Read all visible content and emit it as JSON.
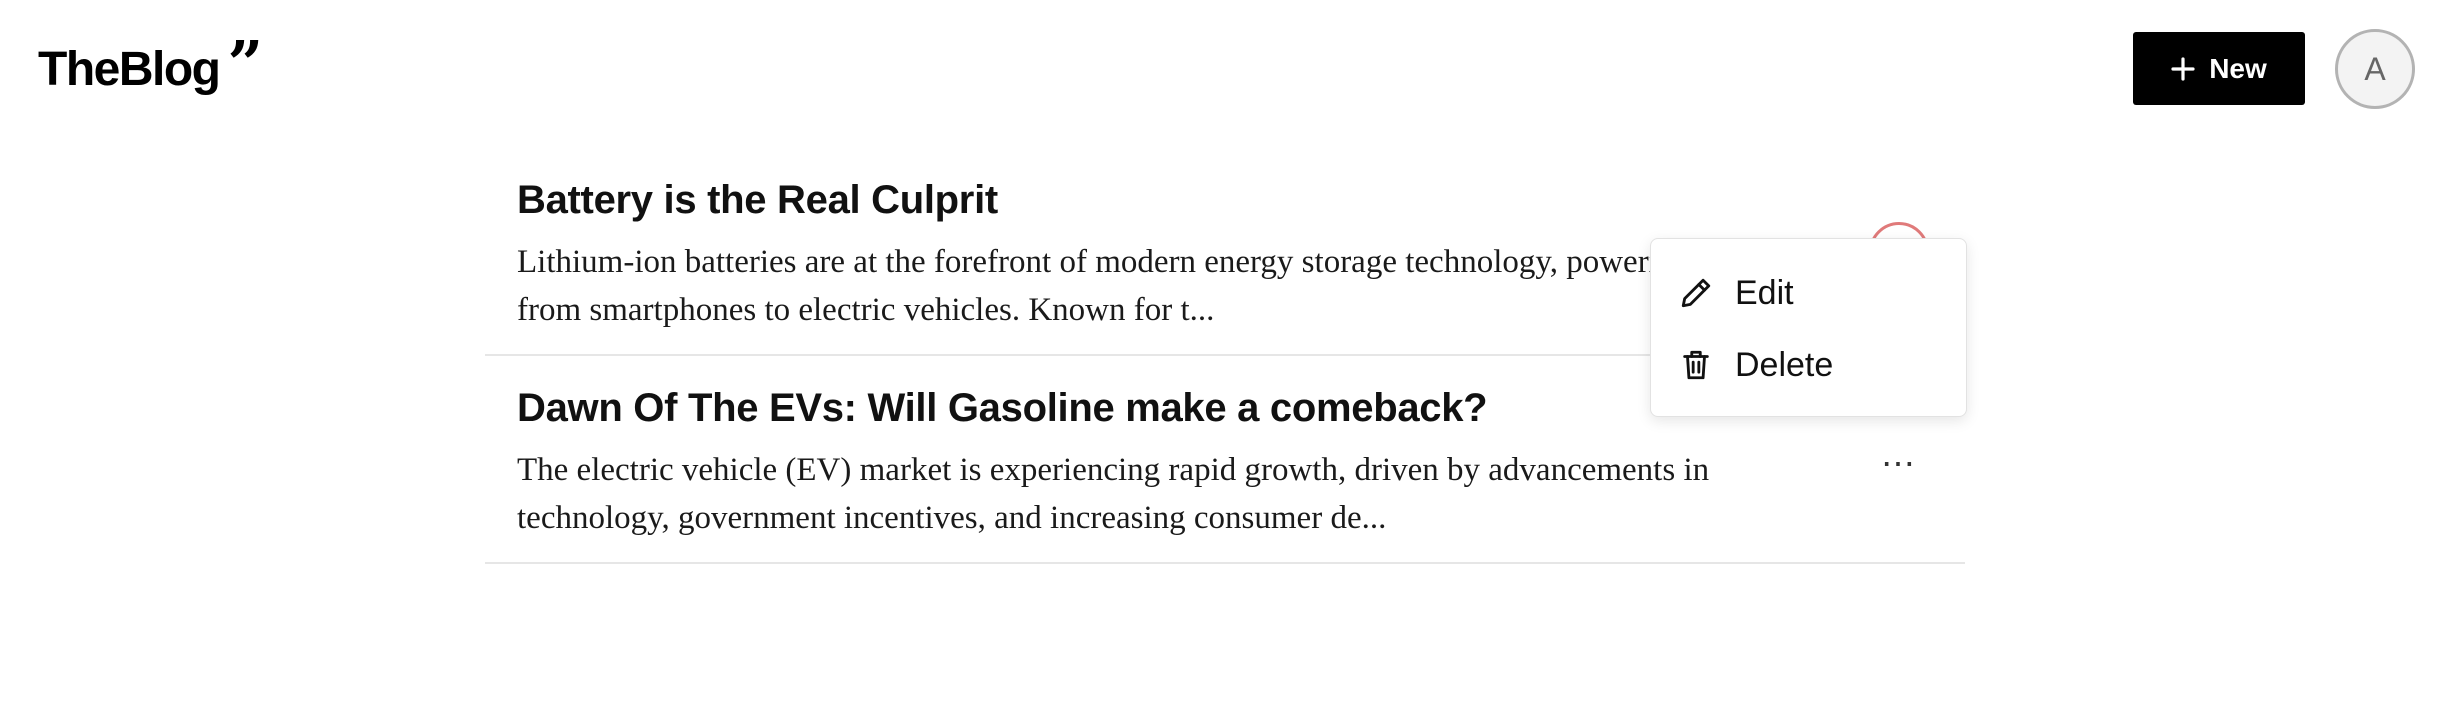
{
  "header": {
    "logo_text": "TheBlog",
    "logo_mark": "”",
    "new_button_label": "New",
    "new_button_icon": "plus-icon",
    "avatar_initial": "A"
  },
  "posts": [
    {
      "title": "Battery is the Real Culprit",
      "excerpt": "Lithium-ion batteries are at the forefront of modern energy storage technology, powering everything from smartphones to electric vehicles. Known for t...",
      "menu_open": true
    },
    {
      "title": "Dawn Of The EVs: Will Gasoline make a comeback?",
      "excerpt": "The electric vehicle (EV) market is experiencing rapid growth, driven by advancements in technology, government incentives, and increasing consumer de...",
      "menu_open": false
    }
  ],
  "more_button_glyph": "⋯",
  "menu": {
    "items": [
      {
        "label": "Edit",
        "icon": "pencil-icon"
      },
      {
        "label": "Delete",
        "icon": "trash-icon"
      }
    ]
  }
}
